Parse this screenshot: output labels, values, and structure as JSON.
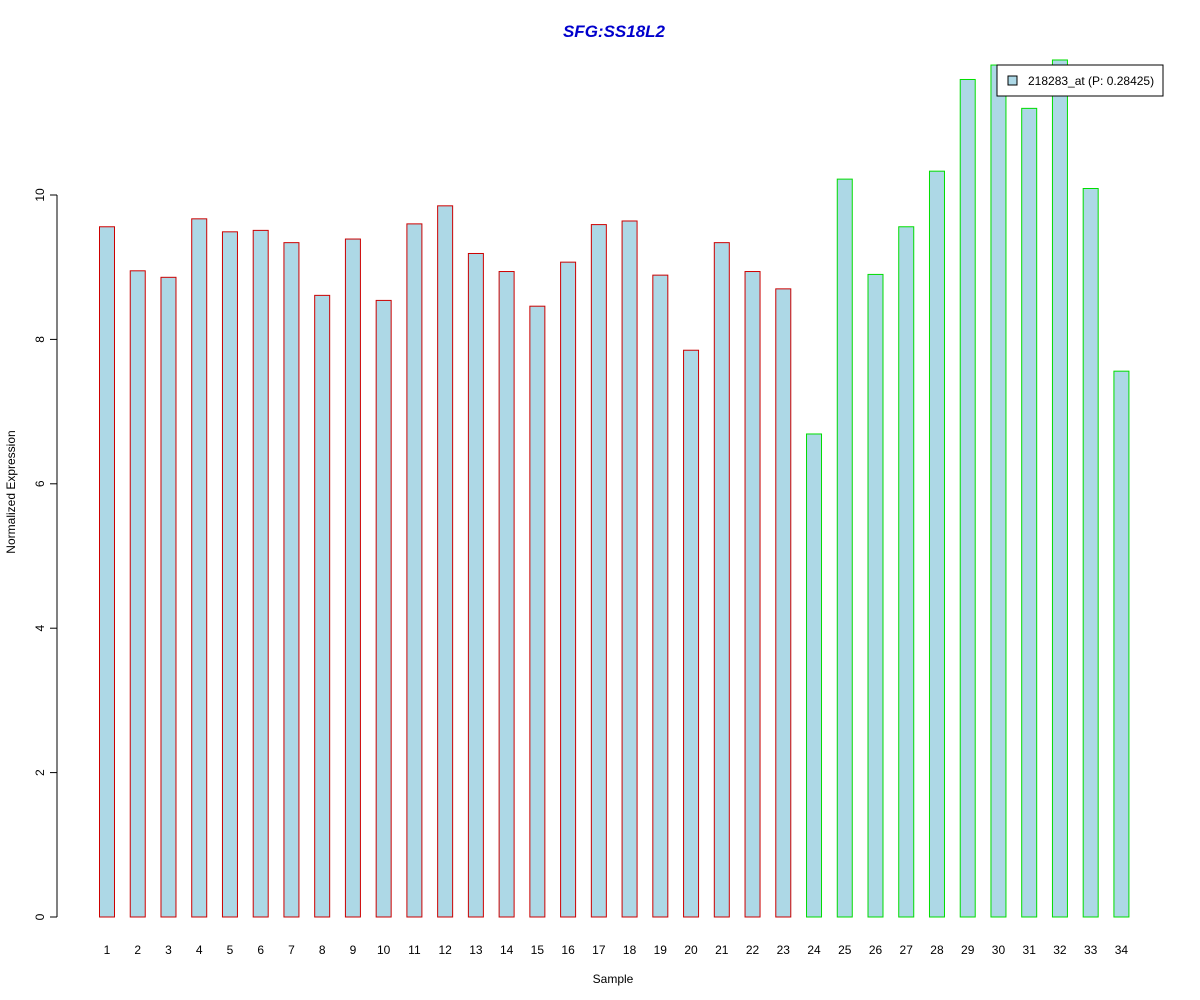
{
  "chart_data": {
    "type": "bar",
    "title": "SFG:SS18L2",
    "xlabel": "Sample",
    "ylabel": "Normalized Expression",
    "categories": [
      "1",
      "2",
      "3",
      "4",
      "5",
      "6",
      "7",
      "8",
      "9",
      "10",
      "11",
      "12",
      "13",
      "14",
      "15",
      "16",
      "17",
      "18",
      "19",
      "20",
      "21",
      "22",
      "23",
      "24",
      "25",
      "26",
      "27",
      "28",
      "29",
      "30",
      "31",
      "32",
      "33",
      "34"
    ],
    "series": [
      {
        "name": "218283_at (P: 0.28425)",
        "values": [
          9.56,
          8.95,
          8.86,
          9.67,
          9.49,
          9.51,
          9.34,
          8.61,
          9.39,
          8.54,
          9.6,
          9.85,
          9.19,
          8.94,
          8.46,
          9.07,
          9.59,
          9.64,
          8.89,
          7.85,
          9.34,
          8.94,
          8.7,
          6.69,
          10.22,
          8.9,
          9.56,
          10.33,
          11.6,
          11.8,
          11.2,
          11.87,
          10.09,
          7.56
        ]
      }
    ],
    "groups": [
      {
        "samples": "1-23",
        "border_color": "#cc0000"
      },
      {
        "samples": "24-34",
        "border_color": "#00dd00"
      }
    ],
    "bar_fill": "#add8e6",
    "yticks": [
      0,
      2,
      4,
      6,
      8,
      10
    ],
    "ylim": [
      0,
      11.9
    ],
    "grid": false,
    "legend": {
      "position": "top-right",
      "label": "218283_at (P: 0.28425)",
      "swatch_color": "#add8e6"
    }
  }
}
